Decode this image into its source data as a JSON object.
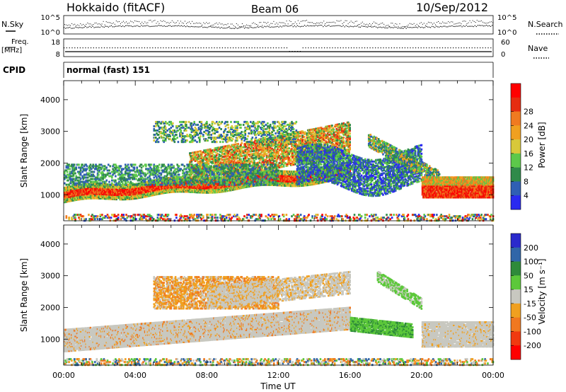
{
  "header": {
    "station": "Hokkaido (fitACF)",
    "beam": "Beam 06",
    "date": "10/Sep/2012"
  },
  "strip_labels": {
    "nsky": "N.Sky",
    "nsearch": "N.Search",
    "freq_line1": "Freq.",
    "freq_line2": "[MHz]",
    "nave": "Nave",
    "cpid": "CPID",
    "cpid_value": "normal (fast) 151",
    "noise_left_ticks": [
      "10^5",
      "10^0"
    ],
    "noise_right_ticks": [
      "10^5",
      "10^0"
    ],
    "freq_left_ticks": [
      "18",
      "8"
    ],
    "freq_right_ticks": [
      "60",
      "0"
    ]
  },
  "chart_data": [
    {
      "type": "heatmap",
      "ylabel": "Slant Range [km]",
      "y_ticks": [
        "1000",
        "2000",
        "3000",
        "4000"
      ],
      "x_range": [
        "00:00",
        "24:00"
      ],
      "ylim": [
        180,
        4600
      ],
      "colorbar": {
        "label": "Power [dB]",
        "ticks": [
          "4",
          "8",
          "12",
          "16",
          "20",
          "24",
          "28"
        ],
        "range": [
          0,
          32
        ],
        "colors": [
          "#2a2af0",
          "#2f5fb4",
          "#2f8a4a",
          "#5cc84a",
          "#d8c83a",
          "#f0a020",
          "#f07a20",
          "#e62c10",
          "#ff0000"
        ]
      },
      "echo_regions_approx": [
        {
          "from": "00:00",
          "to": "16:00",
          "range_km": [
            800,
            1300
          ],
          "level": "strong (20-28 dB)"
        },
        {
          "from": "07:00",
          "to": "16:00",
          "range_km": [
            1500,
            2900
          ],
          "level": "moderate (12-24 dB)"
        },
        {
          "from": "20:00",
          "to": "24:00",
          "range_km": [
            1000,
            1600
          ],
          "level": "strong (24-30 dB)"
        },
        {
          "from": "13:00",
          "to": "20:00",
          "range_km": [
            1300,
            2700
          ],
          "level": "weak (4-12 dB)"
        }
      ]
    },
    {
      "type": "heatmap",
      "ylabel": "Slant Range [km]",
      "y_ticks": [
        "1000",
        "2000",
        "3000",
        "4000"
      ],
      "x_ticks": [
        "00:00",
        "04:00",
        "08:00",
        "12:00",
        "16:00",
        "20:00",
        "00:00"
      ],
      "xlabel": "Time UT",
      "ylim": [
        180,
        4600
      ],
      "colorbar": {
        "label": "Velocity [m s⁻¹]",
        "ticks": [
          "200",
          "100",
          "50",
          "15",
          "-15",
          "-50",
          "-100",
          "-200"
        ],
        "colors": [
          "#2a2acc",
          "#3066a8",
          "#2e8a3a",
          "#5cc83a",
          "#c8c8c0",
          "#f0a020",
          "#f07820",
          "#f03a10",
          "#ff0000"
        ]
      },
      "echo_regions_approx": [
        {
          "from": "00:00",
          "to": "16:00",
          "range_km": [
            600,
            1400
          ],
          "velocity": "ground scatter (grey, ±15)"
        },
        {
          "from": "05:00",
          "to": "12:00",
          "range_km": [
            2000,
            3000
          ],
          "velocity": "-15 to -50 (orange)"
        },
        {
          "from": "16:00",
          "to": "19:00",
          "range_km": [
            1200,
            1800
          ],
          "velocity": "15 to 50 (green)"
        },
        {
          "from": "20:00",
          "to": "24:00",
          "range_km": [
            800,
            1600
          ],
          "velocity": "ground scatter (grey)"
        }
      ]
    }
  ]
}
